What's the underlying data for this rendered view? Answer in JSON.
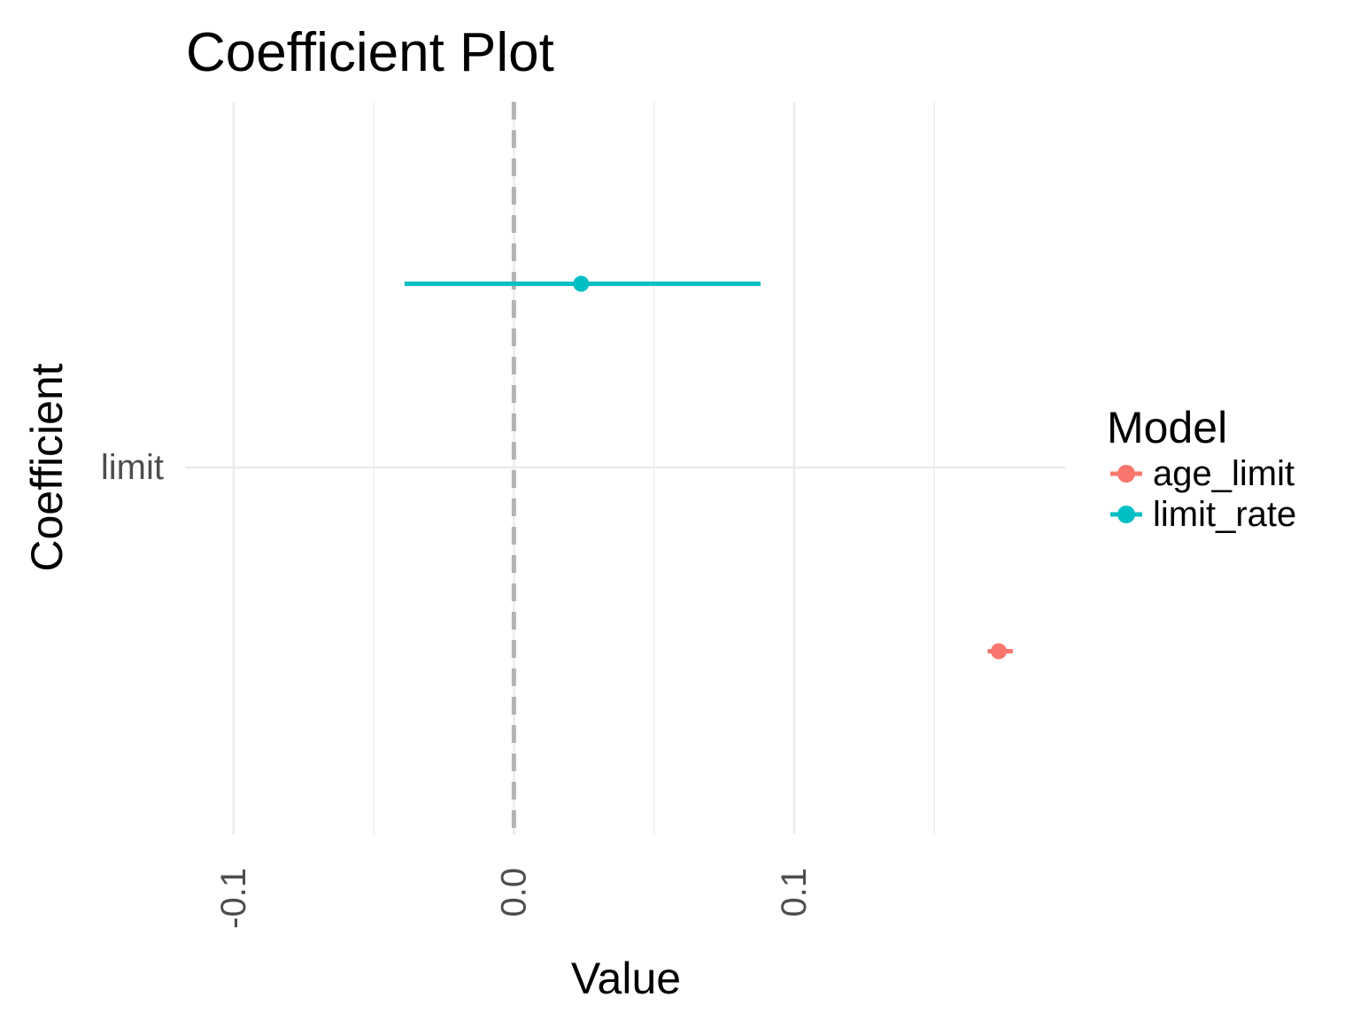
{
  "chart_data": {
    "type": "scatter",
    "title": "Coefficient Plot",
    "xlabel": "Value",
    "ylabel": "Coefficient",
    "xlim": [
      -0.117,
      0.197
    ],
    "x_ticks": [
      {
        "value": -0.1,
        "label": "-0.1"
      },
      {
        "value": 0.0,
        "label": "0.0"
      },
      {
        "value": 0.1,
        "label": "0.1"
      }
    ],
    "x_minor_ticks": [
      -0.05,
      0.05,
      0.15
    ],
    "y_categories": [
      "limit"
    ],
    "reference_line": {
      "x": 0.0,
      "style": "dashed",
      "color": "#b3b3b3"
    },
    "grid": true,
    "legend": {
      "title": "Model",
      "position": "right"
    },
    "series": [
      {
        "name": "age_limit",
        "color": "#F8766D",
        "coefficient": "limit",
        "estimate": 0.173,
        "low": 0.169,
        "high": 0.178,
        "offset": -0.5
      },
      {
        "name": "limit_rate",
        "color": "#00BFC4",
        "coefficient": "limit",
        "estimate": 0.024,
        "low": -0.039,
        "high": 0.088,
        "offset": 0.5
      }
    ]
  }
}
